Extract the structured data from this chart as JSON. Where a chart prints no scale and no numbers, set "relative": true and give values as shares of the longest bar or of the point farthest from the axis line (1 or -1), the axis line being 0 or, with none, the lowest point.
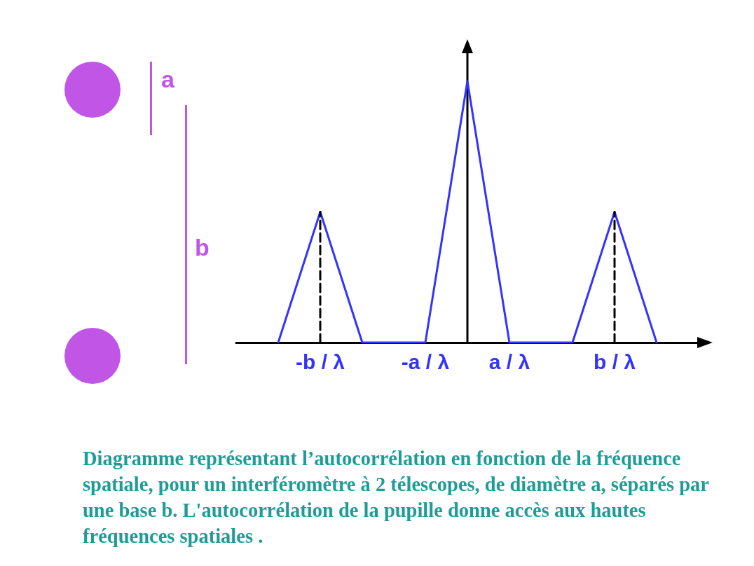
{
  "chart_data": {
    "type": "line",
    "relative": true,
    "grid": false,
    "marker": "none",
    "categories": [
      null,
      null,
      null,
      null,
      "-b / λ",
      null,
      null,
      null,
      null,
      "-a / λ",
      null,
      null,
      null,
      "a / λ",
      null,
      null,
      null,
      null,
      "b / λ",
      null,
      null,
      null,
      null
    ],
    "series": [
      {
        "color": "#3333ff",
        "values": [
          null,
          null,
          0,
          0.25,
          0.5,
          0.25,
          0,
          0,
          0,
          0,
          0.5,
          1,
          0.5,
          0,
          0,
          0,
          0,
          0.25,
          0.5,
          0.25,
          0,
          null,
          null
        ]
      },
      {
        "color": "#000000",
        "line_style": "dashed",
        "x": [
          "-b / λ",
          "-b / λ"
        ],
        "values": [
          0,
          0.5
        ]
      },
      {
        "color": "#000000",
        "line_style": "dashed",
        "x": [
          "b / λ",
          "b / λ"
        ],
        "values": [
          0,
          0.5
        ]
      }
    ],
    "annotations": [
      "a",
      "b",
      "Diagramme représentant l’autocorrélation en fonction de la fréquence spatiale, pour un interféromètre à 2 télescopes, de diamètre a, séparés par une base b. L'autocorrélation de la pupille donne accès aux hautes fréquences spatiales ."
    ]
  }
}
